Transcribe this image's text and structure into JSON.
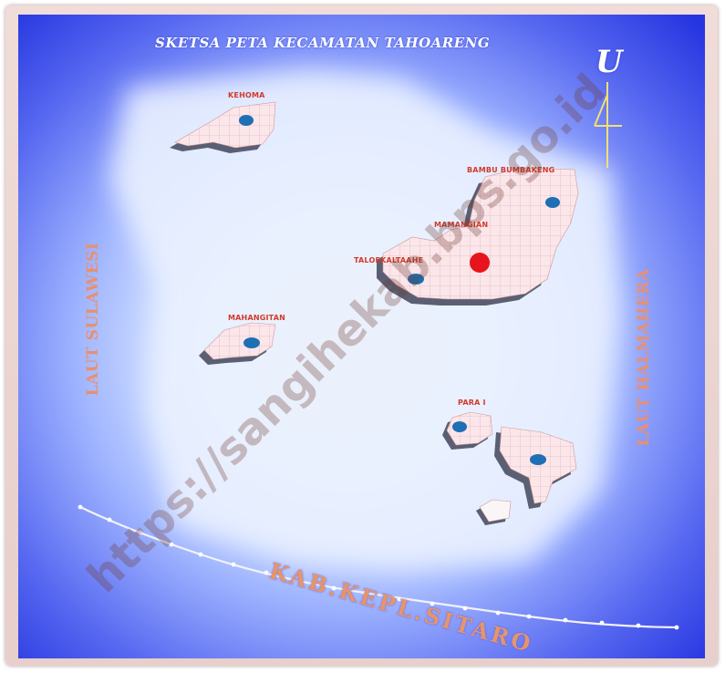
{
  "map": {
    "title": "SKETSA PETA KECAMATAN TAHOARENG",
    "north_symbol": "U",
    "watermark": "https://sangihekab.bps.go.id",
    "colors": {
      "sea_dark": "#2f3ee6",
      "sea_light": "#f6fae4",
      "land": "#fbe6ea",
      "island_label": "#d23a2a",
      "sea_label": "#e89070",
      "capital_marker": "#e8141c",
      "village_marker": "#1e6fb4"
    },
    "islands": [
      {
        "label": "KEHOMA"
      },
      {
        "label": "BAMBU BUMBAKENG"
      },
      {
        "label": "MAMANGIAN"
      },
      {
        "label": "TALOEKALTAAHE"
      },
      {
        "label": "MAHANGITAN"
      },
      {
        "label": "PARA I"
      },
      {
        "label": ""
      },
      {
        "label": ""
      }
    ],
    "seas": {
      "west": "LAUT SULAWESI",
      "east": "LAUT HALMAHERA"
    },
    "neighbor_regency": "KAB.KEPL.SITARO",
    "legend_markers": {
      "capital": "kecamatan capital (red dot)",
      "village": "village (blue dot)"
    }
  }
}
